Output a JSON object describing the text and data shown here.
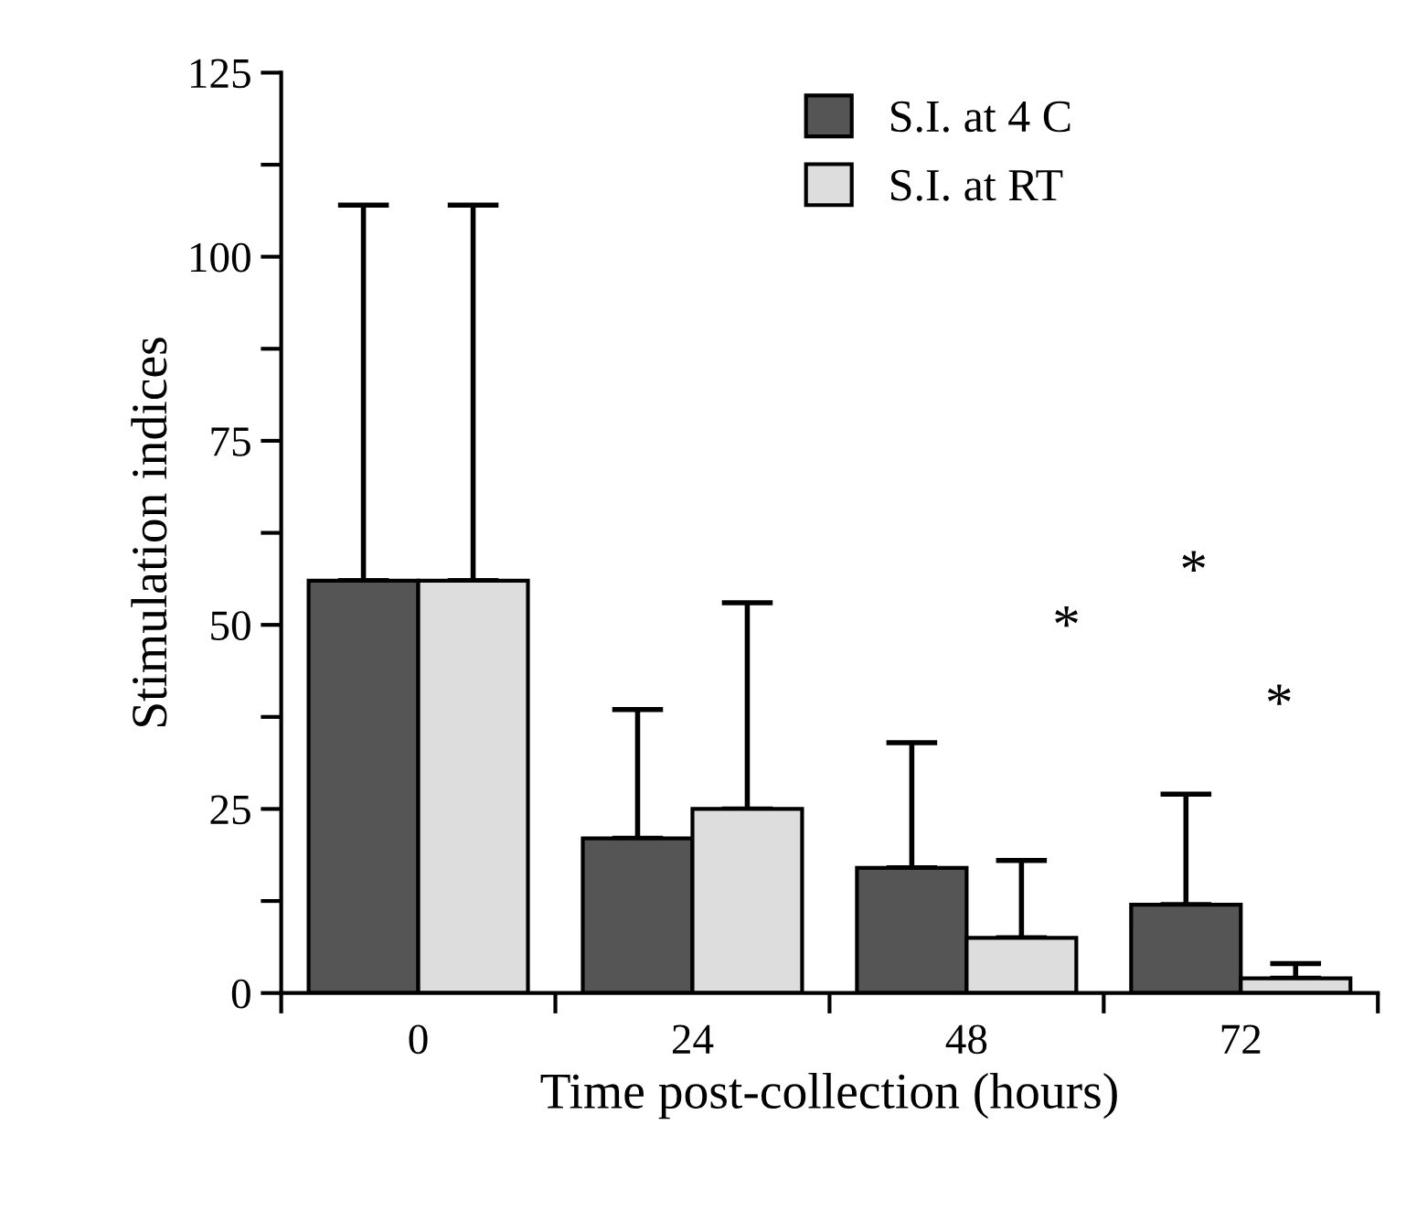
{
  "chart_data": {
    "type": "bar",
    "xlabel": "Time post-collection (hours)",
    "ylabel": "Stimulation indices",
    "categories": [
      "0",
      "24",
      "48",
      "72"
    ],
    "series": [
      {
        "name": "S.I. at 4 C",
        "color": "#555555",
        "values": [
          56,
          21,
          17,
          12
        ],
        "errors": [
          [
            56,
            107
          ],
          [
            21,
            38.5
          ],
          [
            17,
            34
          ],
          [
            12,
            27
          ]
        ]
      },
      {
        "name": "S.I. at RT",
        "color": "#dddddd",
        "values": [
          56,
          25,
          7.5,
          2
        ],
        "errors": [
          [
            56,
            107
          ],
          [
            25,
            53
          ],
          [
            7.5,
            18
          ],
          [
            2,
            4
          ]
        ]
      }
    ],
    "ylim": [
      0,
      125
    ],
    "yticks": [
      0,
      {
        "value": 12.5,
        "label": null
      },
      25,
      {
        "value": 37.5,
        "label": null
      },
      50,
      {
        "value": 62.5,
        "label": null
      },
      75,
      {
        "value": 87.5,
        "label": null
      },
      100,
      {
        "value": 112.5,
        "label": null
      },
      125
    ],
    "annotations": [
      "*",
      "*",
      "*"
    ],
    "legend": "top",
    "grid": false
  }
}
